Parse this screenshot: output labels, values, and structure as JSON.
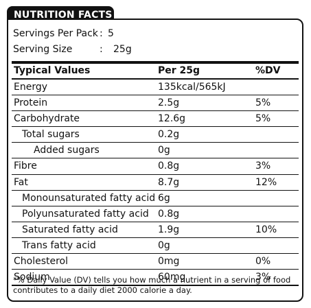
{
  "tab_title": "NUTRITION FACTS",
  "servings": [
    {
      "label": "Servings Per Pack",
      "colon": ":",
      "value": "5"
    },
    {
      "label": "Serving Size",
      "colon": ":",
      "value": "25g"
    }
  ],
  "table_header": {
    "name": "Typical Values",
    "per": "Per 25g",
    "dv": "%DV"
  },
  "rows": [
    {
      "name": "Energy",
      "value": "135kcal/565kJ",
      "dv": ""
    },
    {
      "name": "Protein",
      "value": "2.5g",
      "dv": "5%"
    },
    {
      "name": "Carbohydrate",
      "value": "12.6g",
      "dv": "5%"
    },
    {
      "name": "Total sugars",
      "value": "0.2g",
      "dv": ""
    },
    {
      "name": "Added sugars",
      "value": "0g",
      "dv": ""
    },
    {
      "name": "Fibre",
      "value": "0.8g",
      "dv": "3%"
    },
    {
      "name": "Fat",
      "value": "8.7g",
      "dv": "12%"
    },
    {
      "name": "Monounsaturated fatty acid",
      "value": "6g",
      "dv": ""
    },
    {
      "name": "Polyunsaturated fatty acid",
      "value": "0.8g",
      "dv": ""
    },
    {
      "name": "Saturated fatty acid",
      "value": "1.9g",
      "dv": "10%"
    },
    {
      "name": "Trans fatty acid",
      "value": "0g",
      "dv": ""
    },
    {
      "name": "Cholesterol",
      "value": "0mg",
      "dv": "0%"
    },
    {
      "name": "Sodium",
      "value": "60mg",
      "dv": "3%"
    }
  ],
  "footnote": "*% Daily Value (DV) tells you how much a nutrient in a serving of food contributes to a daily diet 2000 calorie a day."
}
